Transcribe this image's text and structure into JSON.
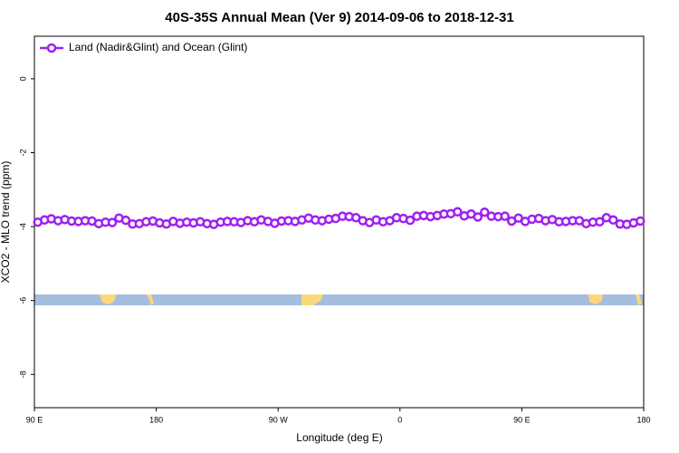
{
  "chart_data": {
    "type": "line",
    "title": "40S-35S Annual Mean (Ver 9)   2014-09-06 to 2018-12-31",
    "x_label": "Longitude (deg E)",
    "y_label": "XCO2 - MLO trend (ppm)",
    "xlim": [
      90,
      540
    ],
    "ylim": [
      -8.9,
      1.15
    ],
    "xticks": [
      {
        "value": 90,
        "label": "90 E"
      },
      180,
      {
        "value": 270,
        "label": "90 W"
      },
      {
        "value": 360,
        "label": "0"
      },
      {
        "value": 450,
        "label": "90 E"
      },
      {
        "value": 540,
        "label": "180"
      }
    ],
    "yticks": [
      0,
      -2,
      -4,
      -6,
      -8
    ],
    "legend": "top-left",
    "x": [
      92.5,
      97.5,
      102.5,
      107.5,
      112.5,
      117.5,
      122.5,
      127.5,
      132.5,
      137.5,
      142.5,
      147.5,
      152.5,
      157.5,
      162.5,
      167.5,
      172.5,
      177.5,
      182.5,
      187.5,
      192.5,
      197.5,
      202.5,
      207.5,
      212.5,
      217.5,
      222.5,
      227.5,
      232.5,
      237.5,
      242.5,
      247.5,
      252.5,
      257.5,
      262.5,
      267.5,
      272.5,
      277.5,
      282.5,
      287.5,
      292.5,
      297.5,
      302.5,
      307.5,
      312.5,
      317.5,
      322.5,
      327.5,
      332.5,
      337.5,
      342.5,
      347.5,
      352.5,
      357.5,
      362.5,
      367.5,
      372.5,
      377.5,
      382.5,
      387.5,
      392.5,
      397.5,
      402.5,
      407.5,
      412.5,
      417.5,
      422.5,
      427.5,
      432.5,
      437.5,
      442.5,
      447.5,
      452.5,
      457.5,
      462.5,
      467.5,
      472.5,
      477.5,
      482.5,
      487.5,
      492.5,
      497.5,
      502.5,
      507.5,
      512.5,
      517.5,
      522.5,
      527.5,
      532.5,
      537.5
    ],
    "series": [
      {
        "name": "Land (Nadir&Glint) and Ocean (Glint)",
        "color": "#a020f0",
        "values": [
          -3.88,
          -3.82,
          -3.79,
          -3.84,
          -3.81,
          -3.85,
          -3.86,
          -3.84,
          -3.85,
          -3.92,
          -3.88,
          -3.89,
          -3.77,
          -3.83,
          -3.93,
          -3.92,
          -3.87,
          -3.85,
          -3.9,
          -3.93,
          -3.86,
          -3.91,
          -3.88,
          -3.9,
          -3.87,
          -3.92,
          -3.94,
          -3.88,
          -3.86,
          -3.87,
          -3.89,
          -3.84,
          -3.87,
          -3.82,
          -3.86,
          -3.91,
          -3.85,
          -3.84,
          -3.86,
          -3.82,
          -3.77,
          -3.82,
          -3.84,
          -3.8,
          -3.78,
          -3.72,
          -3.73,
          -3.76,
          -3.84,
          -3.89,
          -3.82,
          -3.87,
          -3.84,
          -3.76,
          -3.78,
          -3.83,
          -3.72,
          -3.7,
          -3.73,
          -3.7,
          -3.66,
          -3.65,
          -3.6,
          -3.71,
          -3.66,
          -3.74,
          -3.61,
          -3.72,
          -3.73,
          -3.72,
          -3.85,
          -3.77,
          -3.86,
          -3.8,
          -3.78,
          -3.84,
          -3.81,
          -3.87,
          -3.86,
          -3.84,
          -3.84,
          -3.92,
          -3.88,
          -3.87,
          -3.76,
          -3.82,
          -3.93,
          -3.94,
          -3.9,
          -3.85
        ]
      }
    ]
  }
}
